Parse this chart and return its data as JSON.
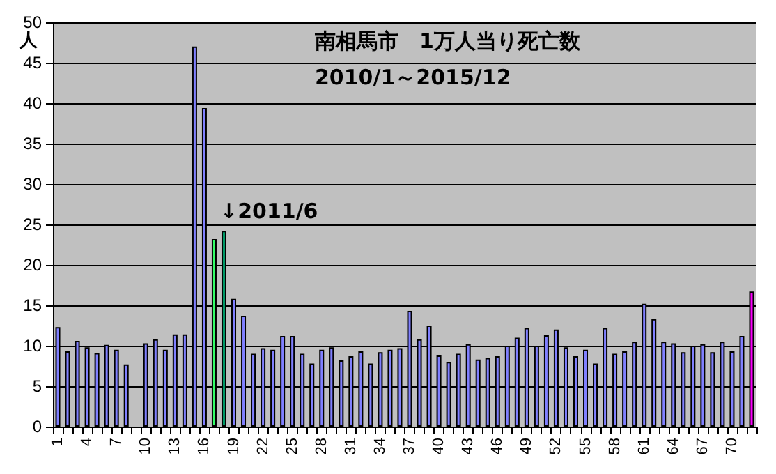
{
  "chart_data": {
    "type": "bar",
    "title": "南相馬市　1万人当り死亡数",
    "subtitle": "2010/1～2015/12",
    "ylabel": "人",
    "categories": [
      "1",
      null,
      null,
      "4",
      null,
      null,
      "7",
      null,
      null,
      "10",
      null,
      null,
      "13",
      null,
      null,
      "16",
      null,
      null,
      "19",
      null,
      null,
      "22",
      null,
      null,
      "25",
      null,
      null,
      "28",
      null,
      null,
      "31",
      null,
      null,
      "34",
      null,
      null,
      "37",
      null,
      null,
      "40",
      null,
      null,
      "43",
      null,
      null,
      "46",
      null,
      null,
      "49",
      null,
      null,
      "52",
      null,
      null,
      "55",
      null,
      null,
      "58",
      null,
      null,
      "61",
      null,
      null,
      "64",
      null,
      null,
      "67",
      null,
      null,
      "70",
      null,
      null
    ],
    "values": [
      12.3,
      9.3,
      10.6,
      9.8,
      9.1,
      10.1,
      9.5,
      7.7,
      null,
      10.3,
      10.8,
      9.5,
      11.4,
      11.4,
      47,
      39.4,
      23.2,
      24.2,
      15.8,
      13.7,
      9.0,
      9.7,
      9.5,
      11.2,
      11.2,
      9.0,
      7.8,
      9.5,
      9.8,
      8.2,
      8.7,
      9.3,
      7.8,
      9.2,
      9.5,
      9.7,
      14.3,
      10.8,
      12.5,
      8.8,
      8.0,
      9.0,
      10.2,
      8.3,
      8.5,
      8.7,
      10.0,
      11.0,
      12.2,
      10.0,
      11.3,
      12.0,
      9.8,
      8.7,
      9.5,
      7.8,
      12.2,
      9.0,
      9.3,
      10.5,
      15.2,
      13.3,
      10.5,
      10.3,
      9.2,
      10.0,
      10.2,
      9.2,
      10.5,
      9.3,
      11.2,
      16.7
    ],
    "colors": [
      "#8080ff",
      "#8080ff",
      "#8080ff",
      "#8080ff",
      "#8080ff",
      "#8080ff",
      "#8080ff",
      "#8080ff",
      "#8080ff",
      "#8080ff",
      "#8080ff",
      "#8080ff",
      "#8080ff",
      "#8080ff",
      "#8080ff",
      "#8080ff",
      "#33ff66",
      "#009966",
      "#8080ff",
      "#8080ff",
      "#8080ff",
      "#8080ff",
      "#8080ff",
      "#8080ff",
      "#8080ff",
      "#8080ff",
      "#8080ff",
      "#8080ff",
      "#8080ff",
      "#8080ff",
      "#8080ff",
      "#8080ff",
      "#8080ff",
      "#8080ff",
      "#8080ff",
      "#8080ff",
      "#8080ff",
      "#8080ff",
      "#8080ff",
      "#8080ff",
      "#8080ff",
      "#8080ff",
      "#8080ff",
      "#8080ff",
      "#8080ff",
      "#8080ff",
      "#8080ff",
      "#8080ff",
      "#8080ff",
      "#8080ff",
      "#8080ff",
      "#8080ff",
      "#8080ff",
      "#8080ff",
      "#8080ff",
      "#8080ff",
      "#8080ff",
      "#8080ff",
      "#8080ff",
      "#8080ff",
      "#8080ff",
      "#8080ff",
      "#8080ff",
      "#8080ff",
      "#8080ff",
      "#8080ff",
      "#8080ff",
      "#8080ff",
      "#8080ff",
      "#8080ff",
      "#8080ff",
      "#ff00ff"
    ],
    "ylim": [
      0,
      50
    ],
    "yticks": [
      0,
      5,
      10,
      15,
      20,
      25,
      30,
      35,
      40,
      45,
      50
    ],
    "grid": "y",
    "annotations": [
      "↓2011/6"
    ]
  }
}
